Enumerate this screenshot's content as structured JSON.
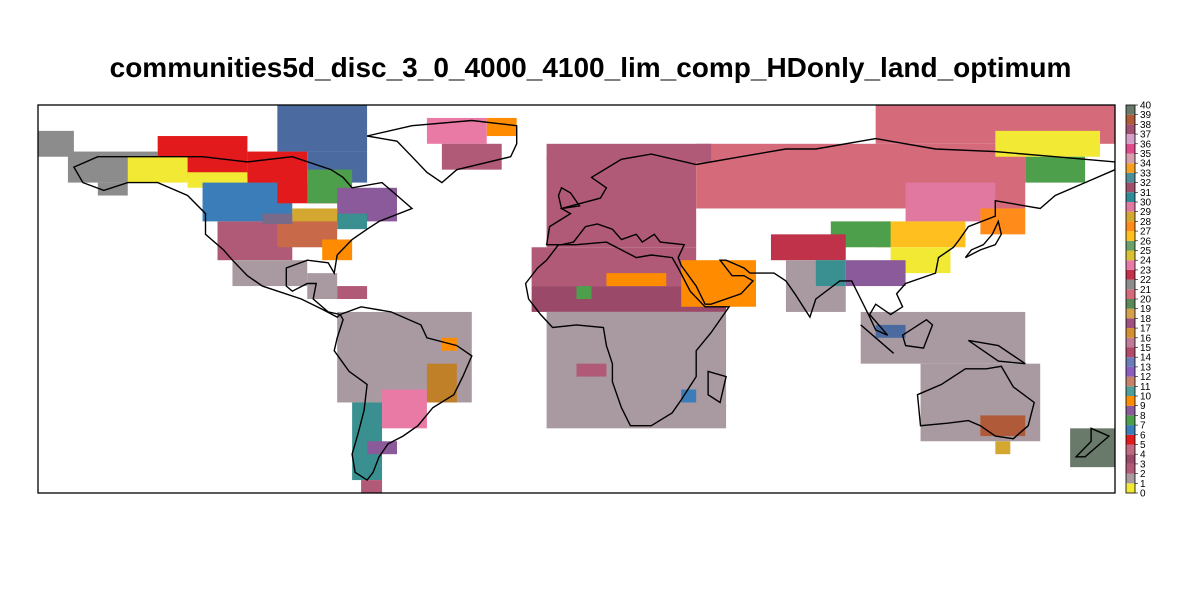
{
  "title": "communities5d_disc_3_0_4000_4100_lim_comp_HDonly_land_optimum",
  "legend": {
    "type": "discrete",
    "min": 0,
    "max": 40,
    "ticks": [
      "0",
      "1",
      "2",
      "3",
      "4",
      "5",
      "6",
      "7",
      "8",
      "9",
      "10",
      "11",
      "12",
      "13",
      "14",
      "15",
      "16",
      "17",
      "18",
      "19",
      "20",
      "21",
      "22",
      "23",
      "24",
      "25",
      "26",
      "27",
      "28",
      "29",
      "30",
      "31",
      "32",
      "33",
      "34",
      "35",
      "36",
      "37",
      "38",
      "39",
      "40"
    ],
    "colors": [
      "#ffffff",
      "#f2e935",
      "#a99aa1",
      "#b05a77",
      "#9a4a68",
      "#c06a82",
      "#e31a1c",
      "#3a7db8",
      "#4e9f4b",
      "#8a5a9a",
      "#ff8c00",
      "#4e9f9a",
      "#c9826a",
      "#8a5ec0",
      "#6a7db8",
      "#b34a6a",
      "#c07a9a",
      "#d49030",
      "#a05080",
      "#d4a24c",
      "#5a8a5a",
      "#d46a7a",
      "#8c8c8c",
      "#c0324a",
      "#e87aa5",
      "#d9c030",
      "#6aa06a",
      "#ffbf1f",
      "#ff8c1a",
      "#d4a830",
      "#e078a0",
      "#2e8c99",
      "#a0506a",
      "#4c8f9a",
      "#f5a020",
      "#d4a0b0",
      "#e04a8a",
      "#d4a0c8",
      "#a05070",
      "#b05a3a",
      "#6a7a6a"
    ]
  },
  "map": {
    "projection": "equirectangular",
    "lon_range": [
      -180,
      180
    ],
    "lat_range": [
      -60,
      90
    ],
    "basemap": "world coastlines",
    "colors": {
      "background": "#a99aa1",
      "temperate_north": "#b05a77",
      "boreal": "#d46a7a",
      "sahel": "#9a4a68",
      "canada_red": "#e31a1c",
      "arctic_yellow": "#f2e935",
      "gray": "#8c8c8c",
      "blue": "#3a7db8",
      "slate": "#4a6aa0",
      "green": "#4e9f4b",
      "teal": "#3a9090",
      "purple": "#8a5a9a",
      "mauve": "#7a6a8a",
      "orange": "#ff8c00",
      "orange2": "#ff8c1a",
      "gold": "#ffbf1f",
      "mustard": "#d4a830",
      "pink": "#e87aa5",
      "rose": "#e078a0",
      "crimson": "#c0324a",
      "rust": "#c86a4a",
      "ochre": "#c08028",
      "brown_red": "#b05a3a",
      "gray_green": "#6a7a6a"
    }
  }
}
